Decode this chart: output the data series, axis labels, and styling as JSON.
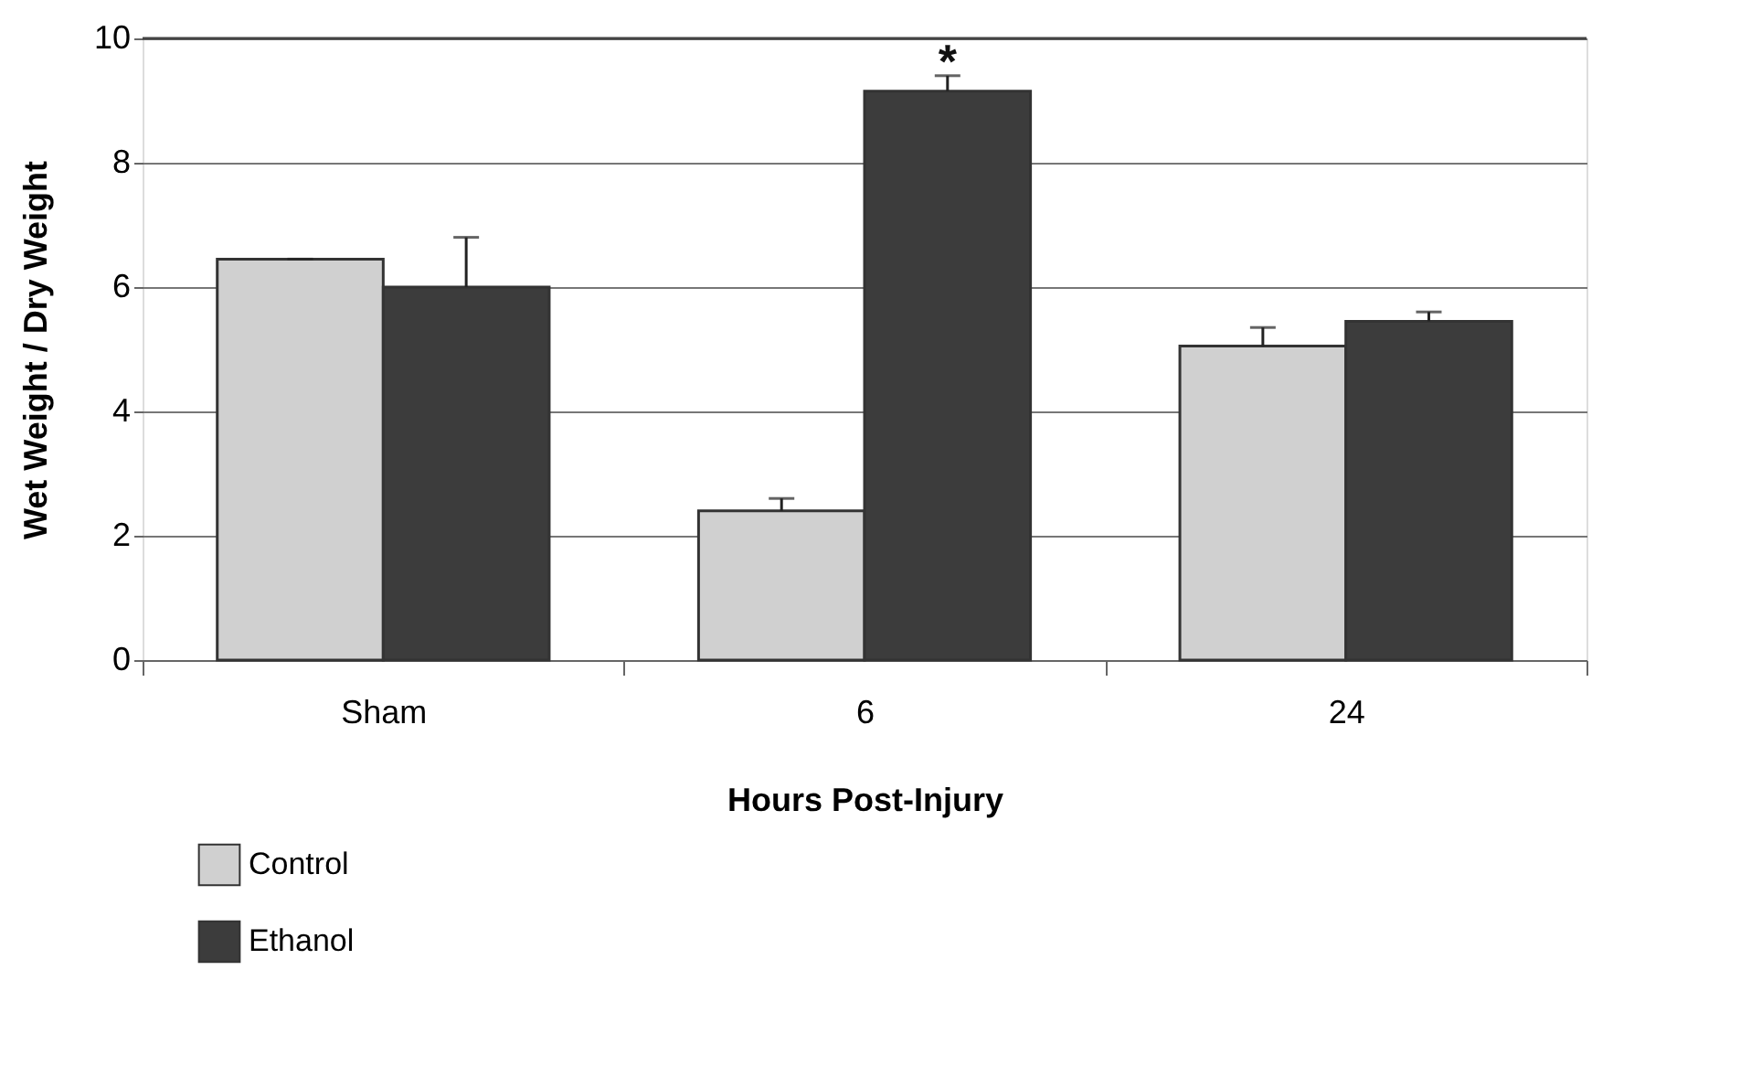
{
  "chart_data": {
    "type": "bar",
    "xlabel": "Hours Post-Injury",
    "ylabel": "Wet Weight / Dry Weight",
    "categories": [
      "Sham",
      "6",
      "24"
    ],
    "series": [
      {
        "name": "Control",
        "color": "#d0d0d0",
        "values": [
          6.45,
          2.4,
          5.05
        ],
        "errors": [
          [
            6.45,
            6.45
          ],
          [
            2.4,
            2.6
          ],
          [
            5.05,
            5.35
          ]
        ]
      },
      {
        "name": "Ethanol",
        "color": "#3c3c3c",
        "values": [
          6.0,
          9.15,
          5.45
        ],
        "errors": [
          [
            6.0,
            6.8
          ],
          [
            9.15,
            9.4
          ],
          [
            5.45,
            5.6
          ]
        ]
      }
    ],
    "ylim": [
      0,
      10
    ],
    "yticks": [
      0,
      2,
      4,
      6,
      8,
      10
    ],
    "grid": "y",
    "legend": "bottom left",
    "annotations": [
      "*"
    ]
  }
}
